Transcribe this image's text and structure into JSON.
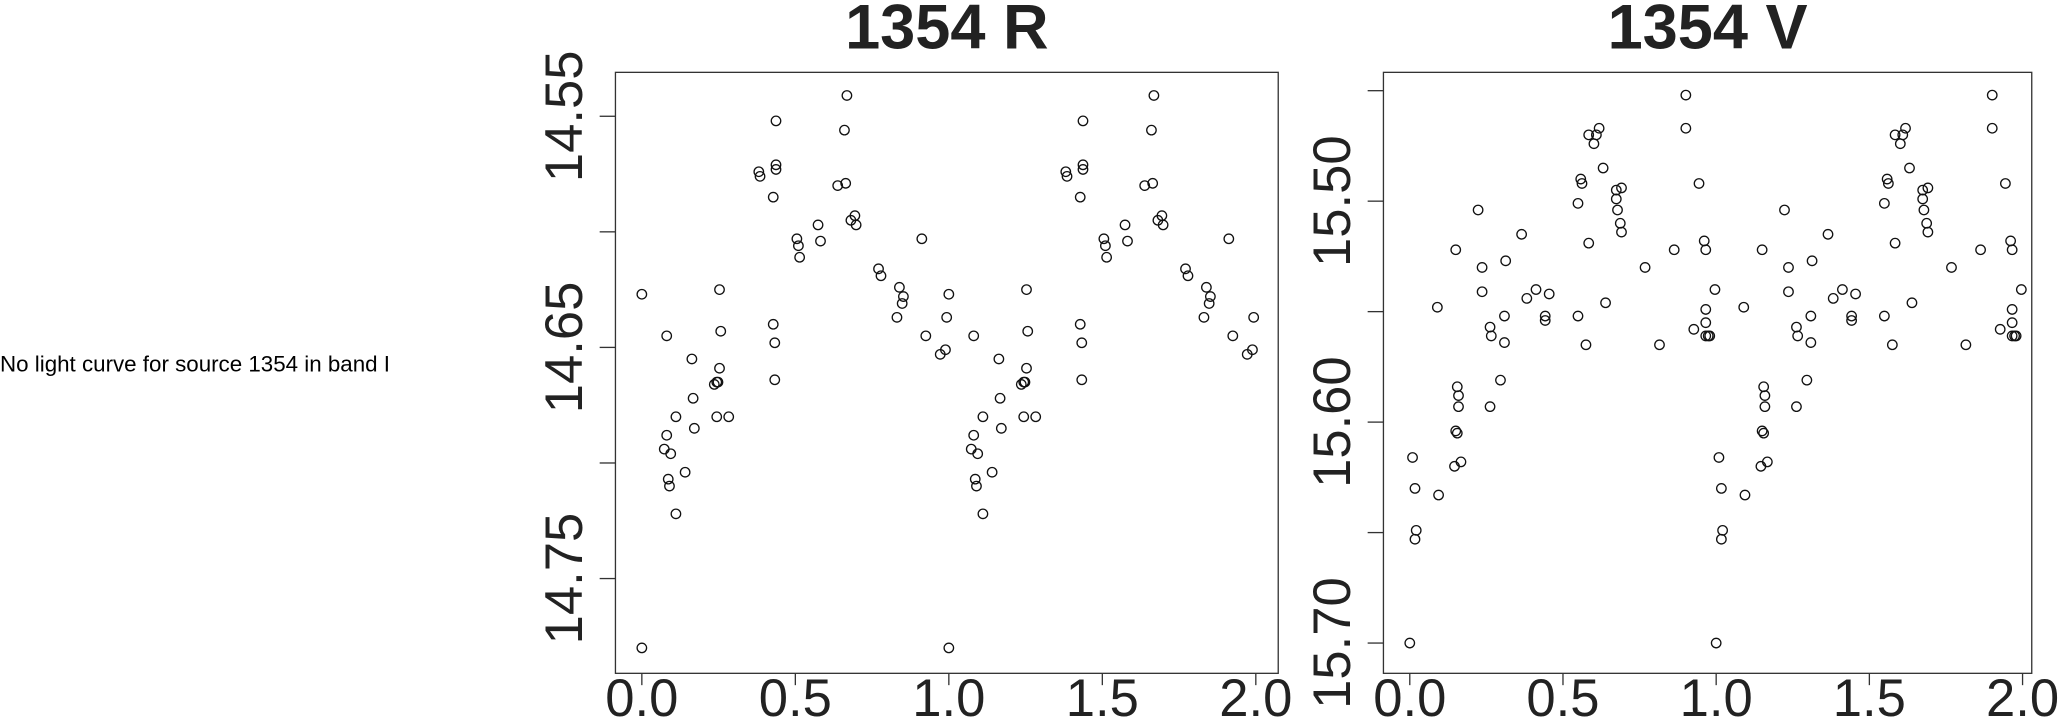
{
  "message": "No light curve for source 1354 in band I",
  "chart_data": [
    {
      "type": "scatter",
      "title": "1354 R",
      "color": "#000000",
      "marker": "open-circle",
      "y_inverted": true,
      "xlim": [
        -0.086,
        2.073
      ],
      "ylim": [
        14.531,
        14.791
      ],
      "xticks": [
        {
          "value": 0,
          "label": "0.0"
        },
        0.5,
        {
          "value": 1,
          "label": "1.0"
        },
        1.5,
        {
          "value": 2,
          "label": "2.0"
        }
      ],
      "yticks": [
        14.55,
        {
          "value": 14.6,
          "label": null
        },
        14.65,
        {
          "value": 14.7,
          "label": null
        },
        14.75
      ],
      "x": [
        0,
        0,
        0.081,
        0.073,
        0.081,
        0.086,
        0.094,
        0.09,
        0.111,
        0.111,
        0.141,
        0.163,
        0.167,
        0.171,
        0.236,
        0.244,
        0.248,
        0.253,
        0.253,
        0.257,
        0.244,
        0.283,
        0.381,
        0.385,
        0.428,
        0.433,
        0.437,
        0.437,
        0.437,
        0.428,
        0.433,
        0.505,
        0.514,
        0.51,
        0.582,
        0.574,
        0.638,
        0.66,
        0.664,
        0.668,
        0.681,
        0.694,
        0.698,
        0.771,
        0.779,
        0.831,
        0.839,
        0.848,
        0.852,
        0.912,
        0.925,
        0.972,
        0.989,
        0.993,
        1,
        1,
        1.081,
        1.073,
        1.081,
        1.086,
        1.094,
        1.09,
        1.111,
        1.111,
        1.141,
        1.163,
        1.167,
        1.171,
        1.236,
        1.244,
        1.248,
        1.253,
        1.253,
        1.257,
        1.244,
        1.283,
        1.381,
        1.385,
        1.428,
        1.433,
        1.437,
        1.437,
        1.437,
        1.428,
        1.433,
        1.505,
        1.514,
        1.51,
        1.582,
        1.574,
        1.638,
        1.66,
        1.664,
        1.668,
        1.681,
        1.694,
        1.698,
        1.771,
        1.779,
        1.831,
        1.839,
        1.848,
        1.852,
        1.912,
        1.925,
        1.972,
        1.989,
        1.993
      ],
      "y": [
        14.627,
        14.78,
        14.645,
        14.694,
        14.688,
        14.707,
        14.696,
        14.71,
        14.68,
        14.722,
        14.704,
        14.655,
        14.672,
        14.685,
        14.666,
        14.665,
        14.665,
        14.659,
        14.625,
        14.643,
        14.68,
        14.68,
        14.574,
        14.576,
        14.585,
        14.648,
        14.573,
        14.571,
        14.552,
        14.64,
        14.664,
        14.603,
        14.611,
        14.606,
        14.604,
        14.597,
        14.58,
        14.556,
        14.579,
        14.541,
        14.595,
        14.593,
        14.597,
        14.616,
        14.619,
        14.637,
        14.624,
        14.631,
        14.628,
        14.603,
        14.645,
        14.653,
        14.651,
        14.637,
        14.627,
        14.78,
        14.645,
        14.694,
        14.688,
        14.707,
        14.696,
        14.71,
        14.68,
        14.722,
        14.704,
        14.655,
        14.672,
        14.685,
        14.666,
        14.665,
        14.665,
        14.659,
        14.625,
        14.643,
        14.68,
        14.68,
        14.574,
        14.576,
        14.585,
        14.648,
        14.573,
        14.571,
        14.552,
        14.64,
        14.664,
        14.603,
        14.611,
        14.606,
        14.604,
        14.597,
        14.58,
        14.556,
        14.579,
        14.541,
        14.595,
        14.593,
        14.597,
        14.616,
        14.619,
        14.637,
        14.624,
        14.631,
        14.628,
        14.603,
        14.645,
        14.653,
        14.651,
        14.637
      ]
    },
    {
      "type": "scatter",
      "title": "1354 V",
      "color": "#000000",
      "marker": "open-circle",
      "y_inverted": true,
      "xlim": [
        -0.086,
        2.03
      ],
      "ylim": [
        15.4417,
        15.7137
      ],
      "xticks": [
        {
          "value": 0,
          "label": "0.0"
        },
        0.5,
        {
          "value": 1,
          "label": "1.0"
        },
        1.5,
        {
          "value": 2,
          "label": "2.0"
        }
      ],
      "yticks": [
        {
          "value": 15.45,
          "label": null
        },
        {
          "value": 15.5,
          "label": "15.50"
        },
        {
          "value": 15.55,
          "label": null
        },
        {
          "value": 15.6,
          "label": "15.60"
        },
        {
          "value": 15.65,
          "label": null
        },
        {
          "value": 15.7,
          "label": "15.70"
        }
      ],
      "x": [
        0,
        0.009,
        0.017,
        0.021,
        0.017,
        0.094,
        0.09,
        0.15,
        0.155,
        0.159,
        0.159,
        0.15,
        0.155,
        0.146,
        0.167,
        0.223,
        0.236,
        0.236,
        0.262,
        0.266,
        0.262,
        0.296,
        0.309,
        0.309,
        0.313,
        0.365,
        0.382,
        0.412,
        0.442,
        0.442,
        0.455,
        0.549,
        0.549,
        0.558,
        0.562,
        0.575,
        0.584,
        0.584,
        0.601,
        0.609,
        0.618,
        0.631,
        0.639,
        0.674,
        0.674,
        0.678,
        0.687,
        0.691,
        0.691,
        0.768,
        0.815,
        0.863,
        0.901,
        0.901,
        0.927,
        0.944,
        0.961,
        0.966,
        0.966,
        0.966,
        0.966,
        0.974,
        0.979,
        0.996,
        1,
        1.009,
        1.017,
        1.021,
        1.017,
        1.094,
        1.09,
        1.15,
        1.155,
        1.159,
        1.159,
        1.15,
        1.155,
        1.146,
        1.167,
        1.223,
        1.236,
        1.236,
        1.262,
        1.266,
        1.262,
        1.296,
        1.309,
        1.309,
        1.313,
        1.365,
        1.382,
        1.412,
        1.442,
        1.442,
        1.455,
        1.549,
        1.549,
        1.558,
        1.562,
        1.575,
        1.584,
        1.584,
        1.601,
        1.609,
        1.618,
        1.631,
        1.639,
        1.674,
        1.674,
        1.678,
        1.687,
        1.691,
        1.691,
        1.768,
        1.815,
        1.863,
        1.901,
        1.901,
        1.927,
        1.944,
        1.961,
        1.966,
        1.966,
        1.966,
        1.966,
        1.974,
        1.979,
        1.996
      ],
      "y": [
        15.7,
        15.616,
        15.653,
        15.649,
        15.63,
        15.633,
        15.548,
        15.522,
        15.584,
        15.588,
        15.593,
        15.604,
        15.605,
        15.62,
        15.618,
        15.504,
        15.53,
        15.541,
        15.557,
        15.561,
        15.593,
        15.581,
        15.552,
        15.564,
        15.527,
        15.515,
        15.544,
        15.54,
        15.554,
        15.552,
        15.542,
        15.501,
        15.552,
        15.49,
        15.492,
        15.565,
        15.519,
        15.47,
        15.474,
        15.47,
        15.467,
        15.485,
        15.546,
        15.495,
        15.499,
        15.504,
        15.51,
        15.514,
        15.494,
        15.53,
        15.565,
        15.522,
        15.452,
        15.467,
        15.558,
        15.492,
        15.518,
        15.522,
        15.549,
        15.555,
        15.561,
        15.561,
        15.561,
        15.54,
        15.7,
        15.616,
        15.653,
        15.649,
        15.63,
        15.633,
        15.548,
        15.522,
        15.584,
        15.588,
        15.593,
        15.604,
        15.605,
        15.62,
        15.618,
        15.504,
        15.53,
        15.541,
        15.557,
        15.561,
        15.593,
        15.581,
        15.552,
        15.564,
        15.527,
        15.515,
        15.544,
        15.54,
        15.554,
        15.552,
        15.542,
        15.501,
        15.552,
        15.49,
        15.492,
        15.565,
        15.519,
        15.47,
        15.474,
        15.47,
        15.467,
        15.485,
        15.546,
        15.495,
        15.499,
        15.504,
        15.51,
        15.514,
        15.494,
        15.53,
        15.565,
        15.522,
        15.452,
        15.467,
        15.558,
        15.492,
        15.518,
        15.522,
        15.549,
        15.555,
        15.561,
        15.561,
        15.561,
        15.54
      ]
    }
  ]
}
